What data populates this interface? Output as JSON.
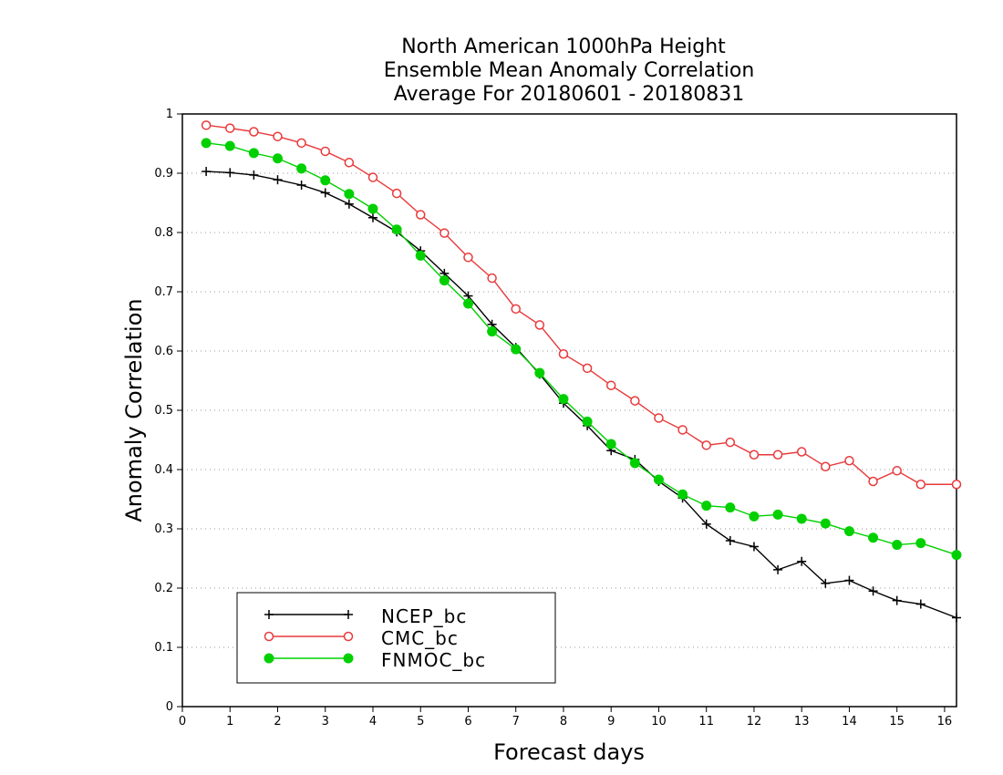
{
  "chart_data": {
    "type": "line",
    "title": [
      "North American 1000hPa Height",
      "Ensemble Mean Anomaly Correlation",
      "Average For 20180601 - 20180831"
    ],
    "xlabel": "Forecast days",
    "ylabel": "Anomaly Correlation",
    "xlim": [
      0,
      16.25
    ],
    "ylim": [
      0,
      1
    ],
    "xticks": [
      0,
      1,
      2,
      3,
      4,
      5,
      6,
      7,
      8,
      9,
      10,
      11,
      12,
      13,
      14,
      15,
      16
    ],
    "xtick_labels": [
      "0",
      "1",
      "2",
      "3",
      "4",
      "5",
      "6",
      "7",
      "8",
      "9",
      "10",
      "11",
      "12",
      "13",
      "14",
      "15",
      "16"
    ],
    "yticks": [
      0,
      0.1,
      0.2,
      0.3,
      0.4,
      0.5,
      0.6,
      0.7,
      0.8,
      0.9,
      1
    ],
    "ytick_labels": [
      "0",
      "0.1",
      "0.2",
      "0.3",
      "0.4",
      "0.5",
      "0.6",
      "0.7",
      "0.8",
      "0.9",
      "1"
    ],
    "grid": "horizontal dotted",
    "legend_position": "bottom-left",
    "x": [
      0.5,
      1,
      1.5,
      2,
      2.5,
      3,
      3.5,
      4,
      4.5,
      5,
      5.5,
      6,
      6.5,
      7,
      7.5,
      8,
      8.5,
      9,
      9.5,
      10,
      10.5,
      11,
      11.5,
      12,
      12.5,
      13,
      13.5,
      14,
      14.5,
      15,
      15.5,
      16.25
    ],
    "series": [
      {
        "name": "NCEP_bc",
        "color": "#000000",
        "marker": "plus",
        "values": [
          0.903,
          0.901,
          0.897,
          0.889,
          0.88,
          0.867,
          0.848,
          0.825,
          0.801,
          0.769,
          0.731,
          0.693,
          0.645,
          0.606,
          0.561,
          0.512,
          0.474,
          0.432,
          0.417,
          0.38,
          0.352,
          0.308,
          0.28,
          0.27,
          0.231,
          0.245,
          0.208,
          0.213,
          0.195,
          0.179,
          0.173,
          0.15
        ]
      },
      {
        "name": "CMC_bc",
        "color": "#e8393b",
        "marker": "open-circle",
        "values": [
          0.981,
          0.976,
          0.97,
          0.962,
          0.951,
          0.937,
          0.918,
          0.893,
          0.866,
          0.83,
          0.799,
          0.758,
          0.723,
          0.671,
          0.644,
          0.595,
          0.571,
          0.542,
          0.516,
          0.487,
          0.467,
          0.441,
          0.446,
          0.425,
          0.425,
          0.43,
          0.405,
          0.415,
          0.38,
          0.398,
          0.375,
          0.375
        ]
      },
      {
        "name": "FNMOC_bc",
        "color": "#00d000",
        "marker": "filled-circle",
        "values": [
          0.951,
          0.946,
          0.934,
          0.925,
          0.908,
          0.888,
          0.865,
          0.84,
          0.805,
          0.761,
          0.719,
          0.68,
          0.633,
          0.603,
          0.563,
          0.519,
          0.481,
          0.443,
          0.411,
          0.383,
          0.358,
          0.339,
          0.336,
          0.321,
          0.324,
          0.317,
          0.309,
          0.296,
          0.285,
          0.273,
          0.276,
          0.256
        ]
      }
    ]
  }
}
